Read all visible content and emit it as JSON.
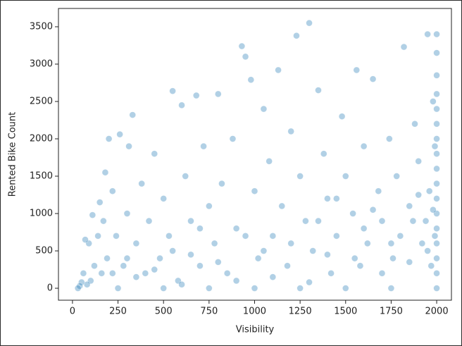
{
  "chart_data": {
    "type": "scatter",
    "x_label": "Visibility",
    "y_label": "Rented Bike Count",
    "color": "#1f77b4",
    "xlim": [
      -77,
      2081
    ],
    "xticks": [
      0,
      250,
      500,
      750,
      1000,
      1250,
      1500,
      1750,
      2000
    ],
    "ylim": [
      -160,
      3745
    ],
    "yticks": [
      0,
      500,
      1000,
      1500,
      2000,
      2500,
      3000,
      3500
    ],
    "x": [
      2000,
      2000,
      2000,
      2000,
      2000,
      2000,
      2000,
      2000,
      2000,
      2000,
      2000,
      2000,
      2000,
      2000,
      2000,
      2000,
      2000,
      1990,
      1980,
      1950,
      1960,
      1940,
      1920,
      1900,
      1880,
      1850,
      1820,
      1800,
      1780,
      1760,
      1740,
      1700,
      1680,
      1650,
      1620,
      1600,
      1580,
      1560,
      1540,
      1500,
      1480,
      1450,
      1420,
      1400,
      1380,
      1350,
      1320,
      1300,
      1280,
      1250,
      1230,
      1200,
      1180,
      1150,
      1130,
      1100,
      1080,
      1050,
      1020,
      1000,
      980,
      950,
      930,
      900,
      880,
      850,
      820,
      800,
      780,
      750,
      720,
      700,
      680,
      650,
      620,
      600,
      580,
      550,
      530,
      500,
      480,
      450,
      420,
      400,
      380,
      350,
      330,
      310,
      300,
      280,
      260,
      240,
      220,
      200,
      190,
      180,
      170,
      160,
      150,
      140,
      120,
      110,
      100,
      90,
      80,
      70,
      60,
      50,
      40,
      30,
      250,
      500,
      750,
      1000,
      1250,
      1500,
      1750,
      600,
      900,
      1100,
      1300,
      1700,
      1850,
      1950,
      1600,
      1400,
      1200,
      800,
      450,
      350,
      1650,
      1900,
      1980,
      1990,
      1970,
      1870,
      1750,
      1550,
      1450,
      1350,
      1050,
      950,
      700,
      650,
      550,
      300,
      220
    ],
    "y": [
      3400,
      3150,
      2850,
      2600,
      2400,
      2200,
      2000,
      1800,
      1600,
      1400,
      1200,
      1000,
      800,
      600,
      400,
      200,
      0,
      1900,
      2500,
      3400,
      1300,
      900,
      600,
      1700,
      2200,
      1100,
      3230,
      700,
      1500,
      400,
      2000,
      900,
      1300,
      2800,
      600,
      1900,
      300,
      2920,
      1000,
      1500,
      2300,
      700,
      200,
      1200,
      1800,
      2650,
      500,
      3550,
      900,
      1500,
      3380,
      2100,
      300,
      1100,
      2920,
      700,
      1700,
      2400,
      400,
      1300,
      2790,
      3100,
      3240,
      800,
      2000,
      200,
      1400,
      2600,
      600,
      1100,
      1900,
      300,
      2580,
      900,
      1500,
      2450,
      100,
      2640,
      700,
      1200,
      400,
      1800,
      900,
      200,
      1400,
      600,
      2320,
      1900,
      1000,
      300,
      2060,
      700,
      1300,
      2000,
      400,
      1550,
      900,
      200,
      1150,
      700,
      300,
      980,
      100,
      600,
      50,
      650,
      200,
      80,
      30,
      0,
      0,
      0,
      0,
      0,
      0,
      0,
      0,
      50,
      100,
      150,
      80,
      200,
      350,
      500,
      800,
      450,
      600,
      350,
      250,
      150,
      1050,
      1250,
      1050,
      700,
      300,
      900,
      600,
      400,
      1200,
      900,
      500,
      700,
      800,
      450,
      500,
      400,
      200
    ]
  }
}
